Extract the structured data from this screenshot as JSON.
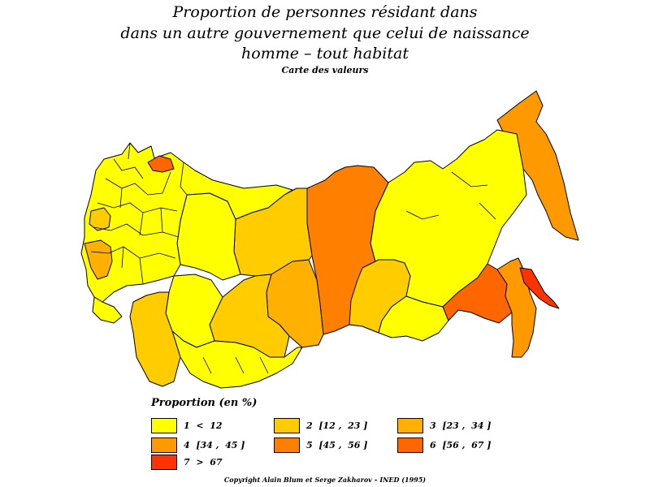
{
  "title": {
    "line1": "Proportion de personnes résidant dans",
    "line2": "dans un autre gouvernement que celui de naissance",
    "line3": "homme  –  tout habitat",
    "subtitle": "Carte des valeurs"
  },
  "colors": {
    "c1": "#ffff00",
    "c2": "#ffcc00",
    "c3": "#ffb000",
    "c4": "#ff9900",
    "c5": "#ff8000",
    "c6": "#ff6600",
    "c7": "#ff3300",
    "border": "#000000"
  },
  "legend": {
    "title": "Proportion (en %)",
    "items": [
      {
        "label": "1  <  12",
        "color": "#ffff00"
      },
      {
        "label": "2  [12 ,  23 ]",
        "color": "#ffcc00"
      },
      {
        "label": "3  [23 ,  34 ]",
        "color": "#ffb000"
      },
      {
        "label": "4  [34 ,  45 ]",
        "color": "#ff9900"
      },
      {
        "label": "5  [45 ,  56 ]",
        "color": "#ff8000"
      },
      {
        "label": "6  [56 ,  67 ]",
        "color": "#ff6600"
      },
      {
        "label": "7  >  67",
        "color": "#ff3300"
      }
    ]
  },
  "regions": {
    "far_east_north": 4,
    "kamchatka_south": 4,
    "sakhalin": 7,
    "yakutia": 1,
    "amur_khabarovsk": 6,
    "primorye": 4,
    "krasnoyarsk": 3,
    "evenkia": 5,
    "tyumen_north": 2,
    "irkutsk": 2,
    "chita": 1,
    "buryatia": 2,
    "kazakhstan_east": 2,
    "kazakhstan_north": 1,
    "kazakhstan_west": 2,
    "central_asia": 1,
    "european_russia": 1,
    "karelia_murmansk": 1,
    "arkhangelsk_coast": 6,
    "ukraine_west": 3,
    "baltic": 2
  },
  "copyright": "Copyright Alain Blum et Serge Zakharov  –  INED (1995)"
}
